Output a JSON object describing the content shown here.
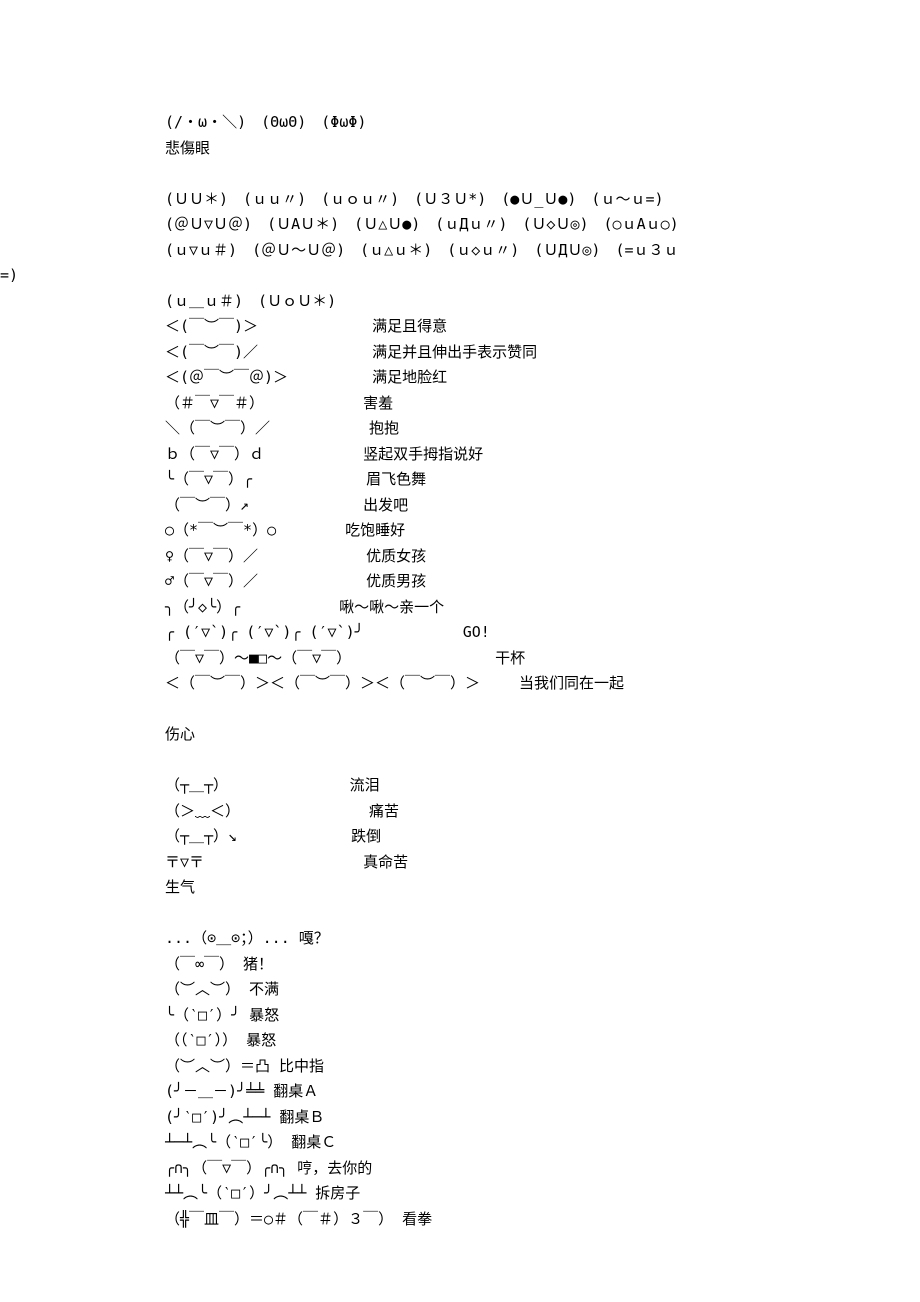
{
  "lines": [
    {
      "cls": "indent",
      "text": "(/・ω・＼)　(ΘωΘ)　(ΦωΦ)"
    },
    {
      "cls": "indent",
      "text": "悲傷眼"
    },
    {
      "cls": "indent",
      "text": ""
    },
    {
      "cls": "indent",
      "text": "(ＵＵ＊)　(ｕｕ〃)　(ｕｏｕ〃)　(Ｕ３Ｕ*)　(●Ｕ_Ｕ●)　(ｕ～ｕ=)"
    },
    {
      "cls": "indent",
      "text": "(＠Ｕ▽Ｕ＠)　(ＵАＵ＊)　(Ｕ△Ｕ●)　(ｕДｕ〃)　(Ｕ◇Ｕ◎)　(○ｕАｕ○)"
    },
    {
      "cls": "indent",
      "text": "(ｕ▽ｕ＃)　(＠Ｕ～Ｕ＠)　(ｕ△ｕ＊)　(ｕ◇ｕ〃)　(ＵДＵ◎)　(=ｕ３ｕ"
    },
    {
      "cls": "no-indent",
      "text": "=)"
    },
    {
      "cls": "indent",
      "text": "(ｕ＿ｕ＃)　(ＵｏＵ＊)"
    },
    {
      "cls": "indent",
      "text": "＜(￣︶￣)＞ 　　　　　　　满足且得意"
    },
    {
      "cls": "indent",
      "text": "＜(￣︶￣)／ 　　　　　　　满足并且伸出手表示赞同"
    },
    {
      "cls": "indent",
      "text": "＜(＠￣︶￣＠)＞ 　　　　　满足地脸红"
    },
    {
      "cls": "indent",
      "text": "（＃￣▽￣＃） 　　　　　　害羞"
    },
    {
      "cls": "indent",
      "text": "＼（￣︶￣）／ 　　　　　　抱抱"
    },
    {
      "cls": "indent",
      "text": "ｂ（￣▽￣）ｄ 　　　　　　竖起双手拇指说好"
    },
    {
      "cls": "indent",
      "text": "╰（￣▽￣）╭ 　　　　　　　眉飞色舞"
    },
    {
      "cls": "indent",
      "text": "（￣︶￣）↗ 　　　　　　　出发吧"
    },
    {
      "cls": "indent",
      "text": "○（*￣︶￣*）○ 　　　　吃饱睡好"
    },
    {
      "cls": "indent",
      "text": "♀（￣▽￣）／ 　　　　　　 优质女孩"
    },
    {
      "cls": "indent",
      "text": "♂（￣▽￣）／ 　　　　　　 优质男孩"
    },
    {
      "cls": "indent",
      "text": "╮（╯◇╰）╭ 　　　　　　啾～啾～亲一个"
    },
    {
      "cls": "indent",
      "text": "╭ (′▽`)╭ (′▽`)╭ (′▽`)╯ 　　　　　　GO!"
    },
    {
      "cls": "indent",
      "text": "（￣▽￣）～■□～（￣▽￣） 　　　　　　　　　干杯"
    },
    {
      "cls": "indent",
      "text": "＜（￣︶￣）＞＜（￣︶￣）＞＜（￣︶￣）＞ 　　当我们同在一起"
    },
    {
      "cls": "indent",
      "text": ""
    },
    {
      "cls": "indent",
      "text": "伤心"
    },
    {
      "cls": "indent",
      "text": ""
    },
    {
      "cls": "indent",
      "text": "（┬＿┬）　　　　　　　　 流泪"
    },
    {
      "cls": "indent",
      "text": "（＞﹏＜） 　　　　　　　　痛苦"
    },
    {
      "cls": "indent",
      "text": "（┬＿┬）↘ 　　　　　　　跌倒"
    },
    {
      "cls": "indent",
      "text": "〒▽〒 　　　　　　　　　　真命苦"
    },
    {
      "cls": "indent",
      "text": "生气"
    },
    {
      "cls": "indent",
      "text": ""
    },
    {
      "cls": "indent",
      "text": "...（⊙＿⊙；）... 嘎？"
    },
    {
      "cls": "indent",
      "text": "（￣∞￣） 猪！"
    },
    {
      "cls": "indent",
      "text": "（︶︿︶） 不满"
    },
    {
      "cls": "indent",
      "text": "╰（‵□′）╯ 暴怒"
    },
    {
      "cls": "indent",
      "text": "（（‵□′）） 暴怒"
    },
    {
      "cls": "indent",
      "text": "（︶︿︶）＝凸 比中指"
    },
    {
      "cls": "indent",
      "text": "(╯－＿－)╯╧╧ 翻桌Ａ"
    },
    {
      "cls": "indent",
      "text": "(╯‵□′)╯︵┴─┴ 翻桌Ｂ"
    },
    {
      "cls": "indent",
      "text": "┴─┴︵╰（‵□′╰） 翻桌Ｃ"
    },
    {
      "cls": "indent",
      "text": "╭∩╮（￣▽￣）╭∩╮ 哼，去你的"
    },
    {
      "cls": "indent",
      "text": "┴┴︵╰（‵□′）╯︵┴┴ 拆房子"
    },
    {
      "cls": "indent",
      "text": "（╬￣皿￣）＝○＃（￣＃）３￣） 看拳"
    }
  ]
}
